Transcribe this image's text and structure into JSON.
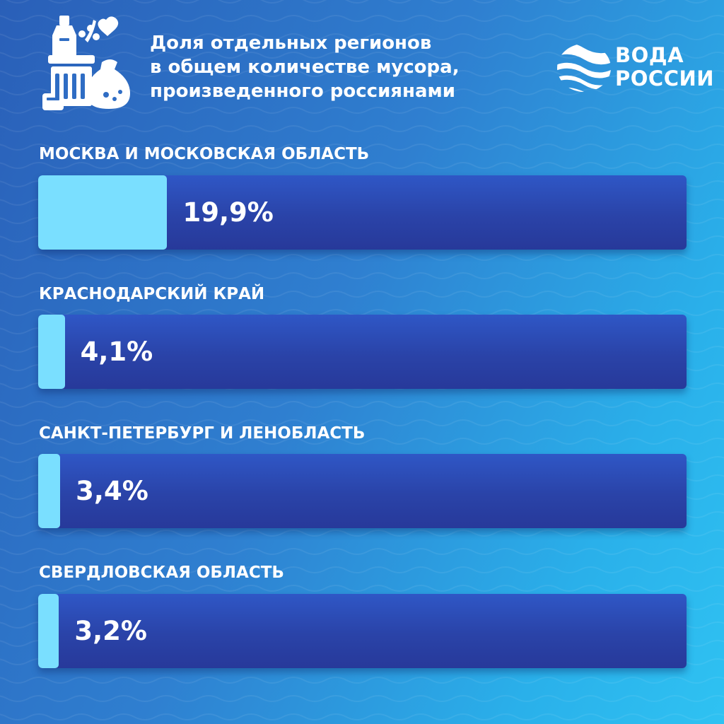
{
  "header": {
    "title_lines": [
      "Доля отдельных регионов",
      "в общем количестве мусора,",
      "произведенного россиянами"
    ],
    "icon": "trash-collage-icon"
  },
  "logo": {
    "lines": [
      "ВОДА",
      "РОССИИ"
    ],
    "icon": "water-waves-logo-icon"
  },
  "colors": {
    "background_start": "#2a5fb8",
    "background_end": "#2fc2f2",
    "bar_track": "#2a43a8",
    "bar_fill": "#7adfff",
    "text": "#ffffff"
  },
  "chart_data": {
    "type": "bar",
    "orientation": "horizontal",
    "title": "Доля отдельных регионов в общем количестве мусора, произведенного россиянами",
    "unit": "%",
    "categories": [
      "МОСКВА И МОСКОВСКАЯ ОБЛАСТЬ",
      "КРАСНОДАРСКИЙ КРАЙ",
      "САНКТ-ПЕТЕРБУРГ И ЛЕНОБЛАСТЬ",
      "СВЕРДЛОВСКАЯ ОБЛАСТЬ"
    ],
    "values": [
      19.9,
      4.1,
      3.4,
      3.2
    ],
    "value_labels": [
      "19,9%",
      "4,1%",
      "3,4%",
      "3,2%"
    ],
    "xlim": [
      0,
      100
    ],
    "grid": false,
    "legend": "none"
  }
}
